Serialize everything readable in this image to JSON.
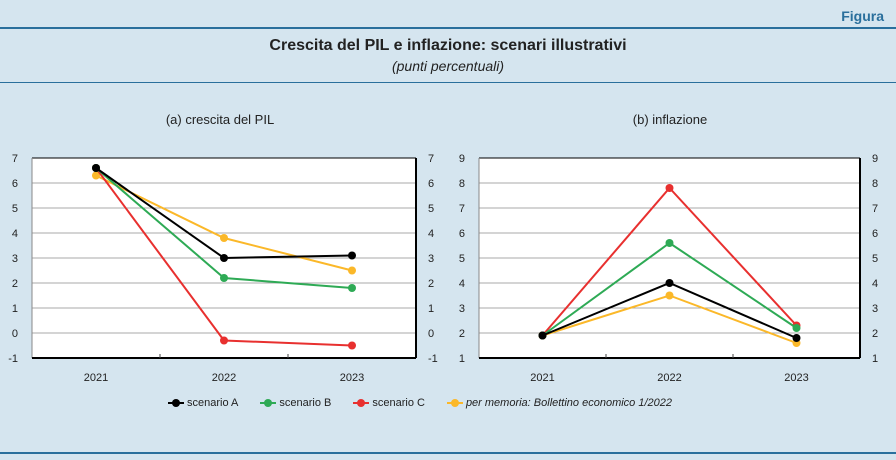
{
  "header": {
    "label": "Figura",
    "title": "Crescita del PIL e inflazione: scenari illustrativi",
    "subtitle": "(punti percentuali)"
  },
  "legend": [
    {
      "name": "scenario A",
      "color": "#000000"
    },
    {
      "name": "scenario B",
      "color": "#2eaa55"
    },
    {
      "name": "scenario C",
      "color": "#e8302f"
    },
    {
      "name": "per memoria: Bollettino economico 1/2022",
      "color": "#fbb829"
    }
  ],
  "chart_data": [
    {
      "type": "line",
      "title": "(a) crescita del PIL",
      "categories": [
        "2021",
        "2022",
        "2023"
      ],
      "ylim": [
        -1,
        7
      ],
      "yticks": [
        -1,
        0,
        1,
        2,
        3,
        4,
        5,
        6,
        7
      ],
      "series": [
        {
          "name": "scenario A",
          "values": [
            6.6,
            3.0,
            3.1
          ]
        },
        {
          "name": "scenario B",
          "values": [
            6.6,
            2.2,
            1.8
          ]
        },
        {
          "name": "scenario C",
          "values": [
            6.6,
            -0.3,
            -0.5
          ]
        },
        {
          "name": "per memoria: Bollettino economico 1/2022",
          "values": [
            6.3,
            3.8,
            2.5
          ]
        }
      ]
    },
    {
      "type": "line",
      "title": "(b) inflazione",
      "categories": [
        "2021",
        "2022",
        "2023"
      ],
      "ylim": [
        1,
        9
      ],
      "yticks": [
        1,
        2,
        3,
        4,
        5,
        6,
        7,
        8,
        9
      ],
      "series": [
        {
          "name": "scenario A",
          "values": [
            1.9,
            4.0,
            1.8
          ]
        },
        {
          "name": "scenario B",
          "values": [
            1.9,
            5.6,
            2.2
          ]
        },
        {
          "name": "scenario C",
          "values": [
            1.9,
            7.8,
            2.3
          ]
        },
        {
          "name": "per memoria: Bollettino economico 1/2022",
          "values": [
            1.9,
            3.5,
            1.6
          ]
        }
      ]
    }
  ]
}
